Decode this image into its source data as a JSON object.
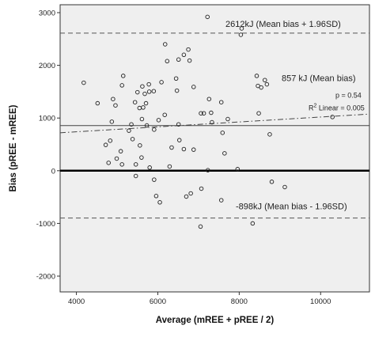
{
  "chart_data": {
    "type": "scatter",
    "xlabel": "Average (mREE + pREE / 2)",
    "ylabel": "Bias (pREE - mREE)",
    "xlim": [
      3600,
      11200
    ],
    "ylim": [
      -2300,
      3150
    ],
    "x_ticks": [
      4000,
      6000,
      8000,
      10000
    ],
    "y_ticks": [
      -2000,
      -1000,
      0,
      1000,
      2000,
      3000
    ],
    "x_tick_labels": [
      "4000",
      "6000",
      "8000",
      "10000"
    ],
    "y_tick_labels": [
      "-2000",
      "-1000",
      "0",
      "1000",
      "2000",
      "3000"
    ],
    "grid": false,
    "plot_background": "#efefef",
    "reference_lines": {
      "mean_bias": {
        "value": 857,
        "label": "857 kJ (Mean bias)"
      },
      "upper_loa": {
        "value": 2612,
        "label": "2612kJ (Mean bias + 1.96SD)"
      },
      "lower_loa": {
        "value": -898,
        "label": "-898kJ (Mean bias - 1.96SD)"
      },
      "zero": {
        "value": 0
      }
    },
    "regression_line": {
      "label": "R",
      "label_sup": "2",
      "label_tail": " Linear = 0.005",
      "p_label": "p = 0.54",
      "endpoints": [
        [
          3600,
          720
        ],
        [
          11200,
          1075
        ]
      ]
    },
    "points": [
      [
        4180,
        1670
      ],
      [
        4520,
        1280
      ],
      [
        4870,
        930
      ],
      [
        4900,
        1360
      ],
      [
        4960,
        1240
      ],
      [
        5150,
        1800
      ],
      [
        5120,
        1620
      ],
      [
        5440,
        1300
      ],
      [
        5500,
        1490
      ],
      [
        5550,
        1190
      ],
      [
        5620,
        1600
      ],
      [
        5680,
        1460
      ],
      [
        5710,
        1280
      ],
      [
        5780,
        1640
      ],
      [
        5790,
        1500
      ],
      [
        5640,
        1200
      ],
      [
        5350,
        880
      ],
      [
        5610,
        980
      ],
      [
        5730,
        860
      ],
      [
        5910,
        780
      ],
      [
        6020,
        960
      ],
      [
        6170,
        1060
      ],
      [
        5900,
        1510
      ],
      [
        6090,
        1680
      ],
      [
        6180,
        2400
      ],
      [
        6230,
        2080
      ],
      [
        6470,
        1520
      ],
      [
        6510,
        2110
      ],
      [
        6640,
        2200
      ],
      [
        6750,
        2300
      ],
      [
        6780,
        2090
      ],
      [
        6880,
        1590
      ],
      [
        6450,
        1750
      ],
      [
        6510,
        880
      ],
      [
        6530,
        580
      ],
      [
        4720,
        490
      ],
      [
        4790,
        150
      ],
      [
        4830,
        570
      ],
      [
        4990,
        230
      ],
      [
        5090,
        370
      ],
      [
        5120,
        120
      ],
      [
        5290,
        760
      ],
      [
        5380,
        600
      ],
      [
        5460,
        120
      ],
      [
        5460,
        -100
      ],
      [
        5560,
        480
      ],
      [
        5600,
        250
      ],
      [
        5800,
        60
      ],
      [
        5910,
        -170
      ],
      [
        5960,
        -480
      ],
      [
        6050,
        -600
      ],
      [
        6290,
        80
      ],
      [
        6340,
        440
      ],
      [
        6640,
        410
      ],
      [
        6880,
        400
      ],
      [
        7060,
        1090
      ],
      [
        7130,
        1090
      ],
      [
        7260,
        1360
      ],
      [
        7310,
        1100
      ],
      [
        7330,
        920
      ],
      [
        7560,
        1300
      ],
      [
        7720,
        980
      ],
      [
        7640,
        330
      ],
      [
        7590,
        720
      ],
      [
        7230,
        10
      ],
      [
        7070,
        -340
      ],
      [
        6810,
        -430
      ],
      [
        6700,
        -490
      ],
      [
        7050,
        -1060
      ],
      [
        7560,
        -560
      ],
      [
        7960,
        30
      ],
      [
        8040,
        2580
      ],
      [
        8060,
        2700
      ],
      [
        7220,
        2920
      ],
      [
        8430,
        1800
      ],
      [
        8460,
        1610
      ],
      [
        8540,
        1580
      ],
      [
        8630,
        1720
      ],
      [
        8680,
        1640
      ],
      [
        8480,
        1090
      ],
      [
        8750,
        690
      ],
      [
        8800,
        -210
      ],
      [
        9120,
        -310
      ],
      [
        8330,
        -1000
      ],
      [
        10290,
        1020
      ]
    ]
  }
}
